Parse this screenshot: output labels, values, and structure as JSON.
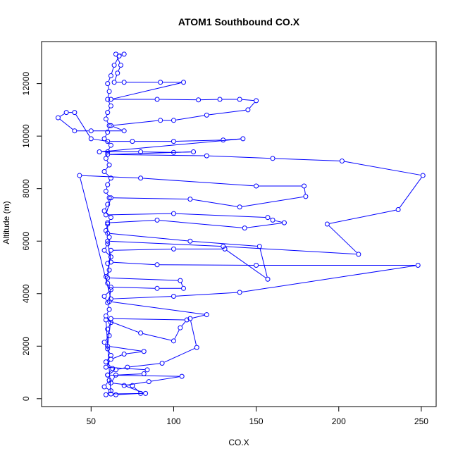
{
  "chart_data": {
    "type": "line",
    "title": "ATOM1 Southbound CO.X",
    "xlabel": "CO.X",
    "ylabel": "Altitude (m)",
    "xlim": [
      20,
      259
    ],
    "ylim": [
      -300,
      13600
    ],
    "xticks": [
      50,
      100,
      150,
      200,
      250
    ],
    "yticks": [
      0,
      2000,
      4000,
      6000,
      8000,
      10000,
      12000
    ],
    "xtick_labels": [
      "50",
      "100",
      "150",
      "200",
      "250"
    ],
    "ytick_labels": [
      "0",
      "2000",
      "4000",
      "6000",
      "8000",
      "10000",
      "12000"
    ],
    "grid": false,
    "legend": "none",
    "colors": {
      "series": "#0000ff",
      "axis": "#000000",
      "background": "#ffffff"
    },
    "series": [
      {
        "marker": "open-circle",
        "line": true,
        "points": [
          [
            59,
            150
          ],
          [
            62,
            300
          ],
          [
            58,
            450
          ],
          [
            61,
            700
          ],
          [
            60,
            900
          ],
          [
            63,
            1150
          ],
          [
            59,
            1400
          ],
          [
            62,
            1650
          ],
          [
            60,
            1900
          ],
          [
            58,
            2150
          ],
          [
            61,
            2400
          ],
          [
            60,
            2650
          ],
          [
            62,
            2900
          ],
          [
            59,
            3150
          ],
          [
            61,
            3400
          ],
          [
            60,
            3650
          ],
          [
            58,
            3900
          ],
          [
            62,
            4150
          ],
          [
            60,
            4400
          ],
          [
            59,
            4650
          ],
          [
            61,
            4900
          ],
          [
            60,
            5150
          ],
          [
            62,
            5400
          ],
          [
            58,
            5650
          ],
          [
            60,
            5900
          ],
          [
            61,
            6150
          ],
          [
            59,
            6400
          ],
          [
            60,
            6650
          ],
          [
            62,
            6900
          ],
          [
            58,
            7150
          ],
          [
            60,
            7400
          ],
          [
            61,
            7650
          ],
          [
            59,
            7900
          ],
          [
            60,
            8150
          ],
          [
            62,
            8400
          ],
          [
            58,
            8650
          ],
          [
            61,
            8900
          ],
          [
            59,
            9150
          ],
          [
            60,
            9400
          ],
          [
            62,
            9650
          ],
          [
            58,
            9900
          ],
          [
            60,
            10150
          ],
          [
            61,
            10400
          ],
          [
            59,
            10650
          ],
          [
            60,
            10900
          ],
          [
            62,
            11150
          ],
          [
            60,
            11400
          ],
          [
            61,
            11700
          ],
          [
            60,
            12000
          ],
          [
            62,
            12300
          ],
          [
            64,
            12700
          ],
          [
            67,
            13050
          ],
          [
            70,
            13120
          ],
          [
            65,
            13120
          ],
          [
            68,
            12700
          ],
          [
            66,
            12400
          ],
          [
            64,
            12050
          ],
          [
            70,
            12050
          ],
          [
            92,
            12050
          ],
          [
            106,
            12050
          ],
          [
            62,
            11400
          ],
          [
            90,
            11400
          ],
          [
            115,
            11380
          ],
          [
            128,
            11400
          ],
          [
            140,
            11400
          ],
          [
            150,
            11350
          ],
          [
            145,
            11000
          ],
          [
            120,
            10800
          ],
          [
            100,
            10600
          ],
          [
            92,
            10600
          ],
          [
            62,
            10400
          ],
          [
            70,
            10200
          ],
          [
            50,
            10200
          ],
          [
            40,
            10200
          ],
          [
            30,
            10700
          ],
          [
            35,
            10900
          ],
          [
            40,
            10900
          ],
          [
            50,
            9900
          ],
          [
            60,
            9800
          ],
          [
            75,
            9800
          ],
          [
            100,
            9800
          ],
          [
            130,
            9850
          ],
          [
            142,
            9900
          ],
          [
            55,
            9400
          ],
          [
            80,
            9400
          ],
          [
            100,
            9380
          ],
          [
            112,
            9400
          ],
          [
            60,
            9300
          ],
          [
            120,
            9250
          ],
          [
            160,
            9150
          ],
          [
            202,
            9050
          ],
          [
            251,
            8500
          ],
          [
            236,
            7200
          ],
          [
            193,
            6650
          ],
          [
            212,
            5500
          ],
          [
            130,
            5800
          ],
          [
            60,
            6000
          ],
          [
            62,
            5200
          ],
          [
            90,
            5100
          ],
          [
            150,
            5080
          ],
          [
            248,
            5080
          ],
          [
            140,
            4050
          ],
          [
            100,
            3900
          ],
          [
            62,
            3800
          ],
          [
            43,
            8500
          ],
          [
            80,
            8400
          ],
          [
            150,
            8100
          ],
          [
            179,
            8100
          ],
          [
            180,
            7700
          ],
          [
            140,
            7300
          ],
          [
            110,
            7600
          ],
          [
            62,
            7650
          ],
          [
            59,
            7000
          ],
          [
            100,
            7050
          ],
          [
            157,
            6900
          ],
          [
            160,
            6800
          ],
          [
            167,
            6700
          ],
          [
            143,
            6500
          ],
          [
            90,
            6800
          ],
          [
            60,
            6700
          ],
          [
            60,
            6300
          ],
          [
            110,
            6000
          ],
          [
            152,
            5800
          ],
          [
            157,
            4550
          ],
          [
            131,
            5700
          ],
          [
            100,
            5700
          ],
          [
            62,
            5650
          ],
          [
            60,
            4600
          ],
          [
            104,
            4500
          ],
          [
            106,
            4200
          ],
          [
            90,
            4200
          ],
          [
            62,
            4250
          ],
          [
            61,
            3700
          ],
          [
            120,
            3200
          ],
          [
            110,
            3050
          ],
          [
            114,
            1950
          ],
          [
            93,
            1350
          ],
          [
            72,
            1200
          ],
          [
            65,
            1100
          ],
          [
            60,
            900
          ],
          [
            105,
            850
          ],
          [
            85,
            650
          ],
          [
            70,
            500
          ],
          [
            83,
            200
          ],
          [
            62,
            180
          ],
          [
            59,
            3000
          ],
          [
            80,
            2500
          ],
          [
            100,
            2200
          ],
          [
            104,
            2700
          ],
          [
            108,
            3000
          ],
          [
            62,
            3050
          ],
          [
            60,
            2000
          ],
          [
            82,
            1800
          ],
          [
            70,
            1700
          ],
          [
            62,
            1500
          ],
          [
            59,
            1200
          ],
          [
            84,
            1100
          ],
          [
            82,
            950
          ],
          [
            65,
            900
          ],
          [
            62,
            600
          ],
          [
            75,
            500
          ],
          [
            80,
            200
          ],
          [
            65,
            150
          ]
        ]
      }
    ]
  }
}
